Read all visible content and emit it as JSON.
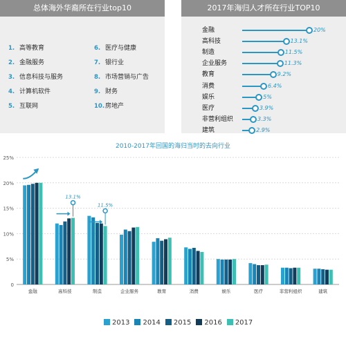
{
  "left_panel": {
    "title": "总体海外华裔所在行业top10",
    "items": [
      {
        "num": "1.",
        "label": "高等教育"
      },
      {
        "num": "2.",
        "label": "金融服务"
      },
      {
        "num": "3.",
        "label": "信息科技与服务"
      },
      {
        "num": "4.",
        "label": "计算机软件"
      },
      {
        "num": "5.",
        "label": "互联网"
      },
      {
        "num": "6.",
        "label": "医疗与健康"
      },
      {
        "num": "7.",
        "label": "银行业"
      },
      {
        "num": "8.",
        "label": "市场营销与广告"
      },
      {
        "num": "9.",
        "label": "财务"
      },
      {
        "num": "10.",
        "label": "房地产"
      }
    ]
  },
  "right_panel": {
    "title": "2017年海归人才所在行业TOP10",
    "rows": [
      {
        "label": "金融",
        "value": 20,
        "value_label": "20%"
      },
      {
        "label": "高科技",
        "value": 13.1,
        "value_label": "13.1%"
      },
      {
        "label": "制造",
        "value": 11.5,
        "value_label": "11.5%"
      },
      {
        "label": "企业服务",
        "value": 11.3,
        "value_label": "11.3%"
      },
      {
        "label": "教育",
        "value": 9.2,
        "value_label": "9.2%"
      },
      {
        "label": "消费",
        "value": 6.4,
        "value_label": "6.4%"
      },
      {
        "label": "娱乐",
        "value": 5,
        "value_label": "5%"
      },
      {
        "label": "医疗",
        "value": 3.9,
        "value_label": "3.9%"
      },
      {
        "label": "非营利组织",
        "value": 3.3,
        "value_label": "3.3%"
      },
      {
        "label": "建筑",
        "value": 2.9,
        "value_label": "2.9%"
      }
    ]
  },
  "chart_data": {
    "type": "bar",
    "title": "2010-2017年回国的海归当时的去向行业",
    "categories": [
      "金融",
      "高科技",
      "制造",
      "企业服务",
      "教育",
      "消费",
      "娱乐",
      "医疗",
      "非营利组织",
      "建筑"
    ],
    "series": [
      {
        "name": "2013",
        "color": "#2aa1cf",
        "values": [
          19.5,
          12.0,
          13.5,
          9.8,
          8.4,
          7.3,
          5.0,
          4.2,
          3.3,
          3.1
        ]
      },
      {
        "name": "2014",
        "color": "#1a85b5",
        "values": [
          19.6,
          11.7,
          13.2,
          10.8,
          9.1,
          7.0,
          4.9,
          4.0,
          3.3,
          3.1
        ]
      },
      {
        "name": "2015",
        "color": "#155f86",
        "values": [
          19.8,
          12.4,
          12.1,
          10.5,
          8.6,
          7.2,
          4.9,
          3.8,
          3.2,
          3.0
        ]
      },
      {
        "name": "2016",
        "color": "#123d5a",
        "values": [
          20.0,
          13.0,
          12.0,
          11.2,
          8.9,
          6.6,
          4.9,
          3.8,
          3.3,
          2.9
        ]
      },
      {
        "name": "2017",
        "color": "#3dbfb4",
        "values": [
          20.0,
          13.1,
          11.5,
          11.3,
          9.2,
          6.4,
          5.0,
          3.9,
          3.3,
          2.9
        ]
      }
    ],
    "annotations": [
      {
        "category": "高科技",
        "text": "13.1%"
      },
      {
        "category": "制造",
        "text": "11.5%"
      }
    ],
    "ylim": [
      0,
      25
    ],
    "yticks": [
      0,
      5,
      10,
      15,
      20,
      25
    ],
    "ytick_labels": [
      "0",
      "5%",
      "10%",
      "15%",
      "20%",
      "25%"
    ],
    "grid": true,
    "legend_position": "bottom"
  }
}
